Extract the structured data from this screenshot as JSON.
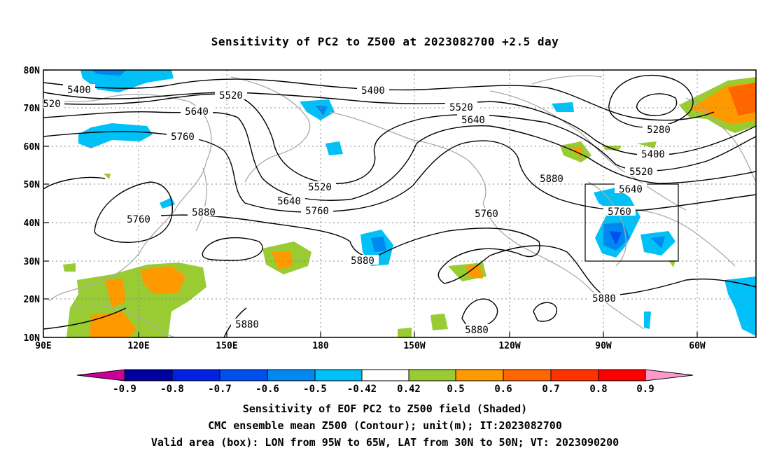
{
  "title": "Sensitivity of PC2 to Z500 at 2023082700 +2.5 day",
  "lat_labels": [
    "80N",
    "70N",
    "60N",
    "50N",
    "40N",
    "30N",
    "20N",
    "10N"
  ],
  "lon_labels": [
    "90E",
    "120E",
    "150E",
    "180",
    "150W",
    "120W",
    "90W",
    "60W"
  ],
  "contours": [
    {
      "value": "5400",
      "label": "5400"
    },
    {
      "value": "5520",
      "label": "5520"
    },
    {
      "value": "5640",
      "label": "5640"
    },
    {
      "value": "5760",
      "label": "5760"
    },
    {
      "value": "5880",
      "label": "5880"
    },
    {
      "value": "5280",
      "label": "5280"
    }
  ],
  "colorbar": {
    "labels": [
      "-0.9",
      "-0.8",
      "-0.7",
      "-0.6",
      "-0.5",
      "-0.42",
      "0.42",
      "0.5",
      "0.6",
      "0.7",
      "0.8",
      "0.9"
    ],
    "colors": [
      "#0000a0",
      "#0022e0",
      "#0050f0",
      "#0088f0",
      "#00c0f8",
      "#ffffff",
      "#99cc33",
      "#ff9900",
      "#ff6600",
      "#ff3300",
      "#ff0000"
    ],
    "low_color": "#cc0099",
    "high_color": "#ff99cc"
  },
  "valid_box": {
    "lon_west": "95W",
    "lon_east": "65W",
    "lat_south": "30N",
    "lat_north": "50N"
  },
  "captions": [
    "Sensitivity of EOF PC2 to Z500 field (Shaded)",
    "CMC ensemble mean Z500 (Contour); unit(m); IT:2023082700",
    "Valid area (box): LON from 95W to 65W, LAT from 30N to 50N; VT: 2023090200"
  ]
}
